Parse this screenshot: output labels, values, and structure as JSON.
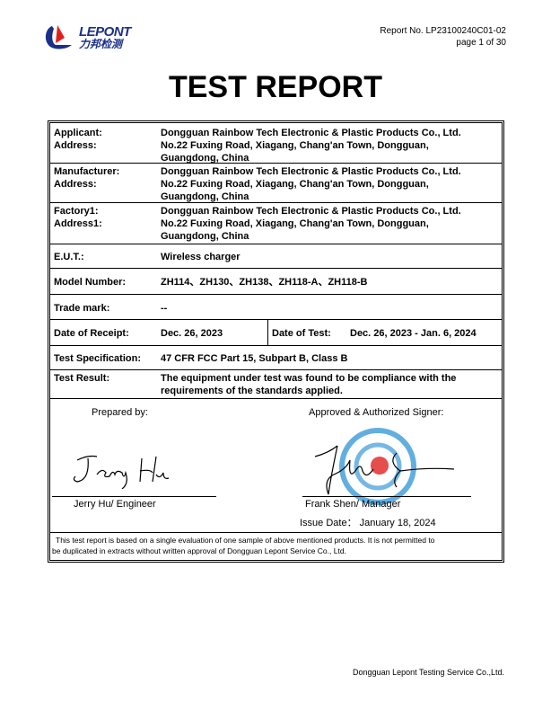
{
  "header": {
    "logo_en": "LEPONT",
    "logo_cn": "力邦检测",
    "report_no": "Report No. LP23100240C01-02",
    "page": "page 1 of  30"
  },
  "title": "TEST REPORT",
  "fields": {
    "applicant_label": "Applicant:",
    "address_label": "Address:",
    "applicant": "Dongguan Rainbow Tech Electronic & Plastic Products Co., Ltd.",
    "address_1": "No.22 Fuxing Road, Xiagang, Chang'an Town, Dongguan,",
    "address_2": "Guangdong, China",
    "manufacturer_label": "Manufacturer:",
    "manufacturer": "Dongguan Rainbow Tech Electronic & Plastic Products Co., Ltd.",
    "factory_label": "Factory1:",
    "address1_label": "Address1:",
    "factory": "Dongguan Rainbow Tech Electronic & Plastic Products Co., Ltd.",
    "eut_label": "E.U.T.:",
    "eut": "Wireless charger",
    "model_label": "Model Number:",
    "model": "ZH114、ZH130、ZH138、ZH118-A、ZH118-B",
    "trade_label": "Trade mark:",
    "trade": "--",
    "receipt_label": "Date of Receipt:",
    "receipt": "Dec. 26, 2023",
    "test_date_label": "Date of Test:",
    "test_date": "Dec. 26, 2023 - Jan. 6, 2024",
    "spec_label": "Test Specification:",
    "spec": "47 CFR FCC Part 15, Subpart B, Class B",
    "result_label": "Test Result:",
    "result_1": "The equipment under test was found to be compliance with the",
    "result_2": "requirements of the standards applied."
  },
  "signatures": {
    "prepared_label": "Prepared by:",
    "approved_label": "Approved & Authorized Signer:",
    "preparer": "Jerry Hu/ Engineer",
    "preparer_signature": "Jerry Hu",
    "approver": "Frank Shen/ Manager",
    "issue_date": "Issue Date： January 18, 2024",
    "stamp_text": "DONGGUAN LEPONT"
  },
  "disclaimer_1": "This test report is based on a single evaluation of one sample of above mentioned products. It is not permitted to",
  "disclaimer_2": "be duplicated in extracts without written approval of Dongguan Lepont Service Co., Ltd.",
  "footer": "Dongguan Lepont Testing Service Co.,Ltd.",
  "colors": {
    "brand_blue": "#1b2f8a",
    "brand_red": "#e02020",
    "stamp_blue": "#3a9ad9"
  }
}
